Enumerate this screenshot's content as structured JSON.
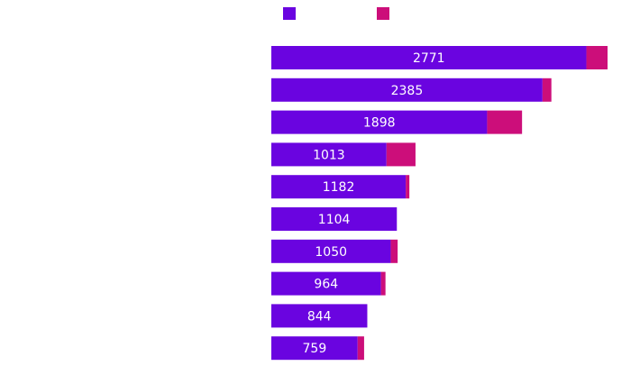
{
  "chart_data": {
    "type": "bar",
    "orientation": "horizontal",
    "stacked": true,
    "categories": [
      "",
      "",
      "",
      "",
      "",
      "",
      "",
      "",
      "",
      ""
    ],
    "series": [
      {
        "color": "#6a04e0",
        "values": [
          2771,
          2385,
          1898,
          1013,
          1182,
          1104,
          1050,
          964,
          844,
          759
        ],
        "labels": [
          "2771",
          "2385",
          "1898",
          "1013",
          "1182",
          "1104",
          "1050",
          "964",
          "844",
          "759"
        ]
      },
      {
        "color": "#cc0e7a",
        "values": [
          186,
          78,
          307,
          255,
          32,
          0,
          61,
          40,
          0,
          57
        ]
      }
    ],
    "xlim": [
      0,
      2957
    ],
    "legend": {
      "position": "top",
      "entries": [
        "",
        ""
      ]
    },
    "grid": false
  }
}
